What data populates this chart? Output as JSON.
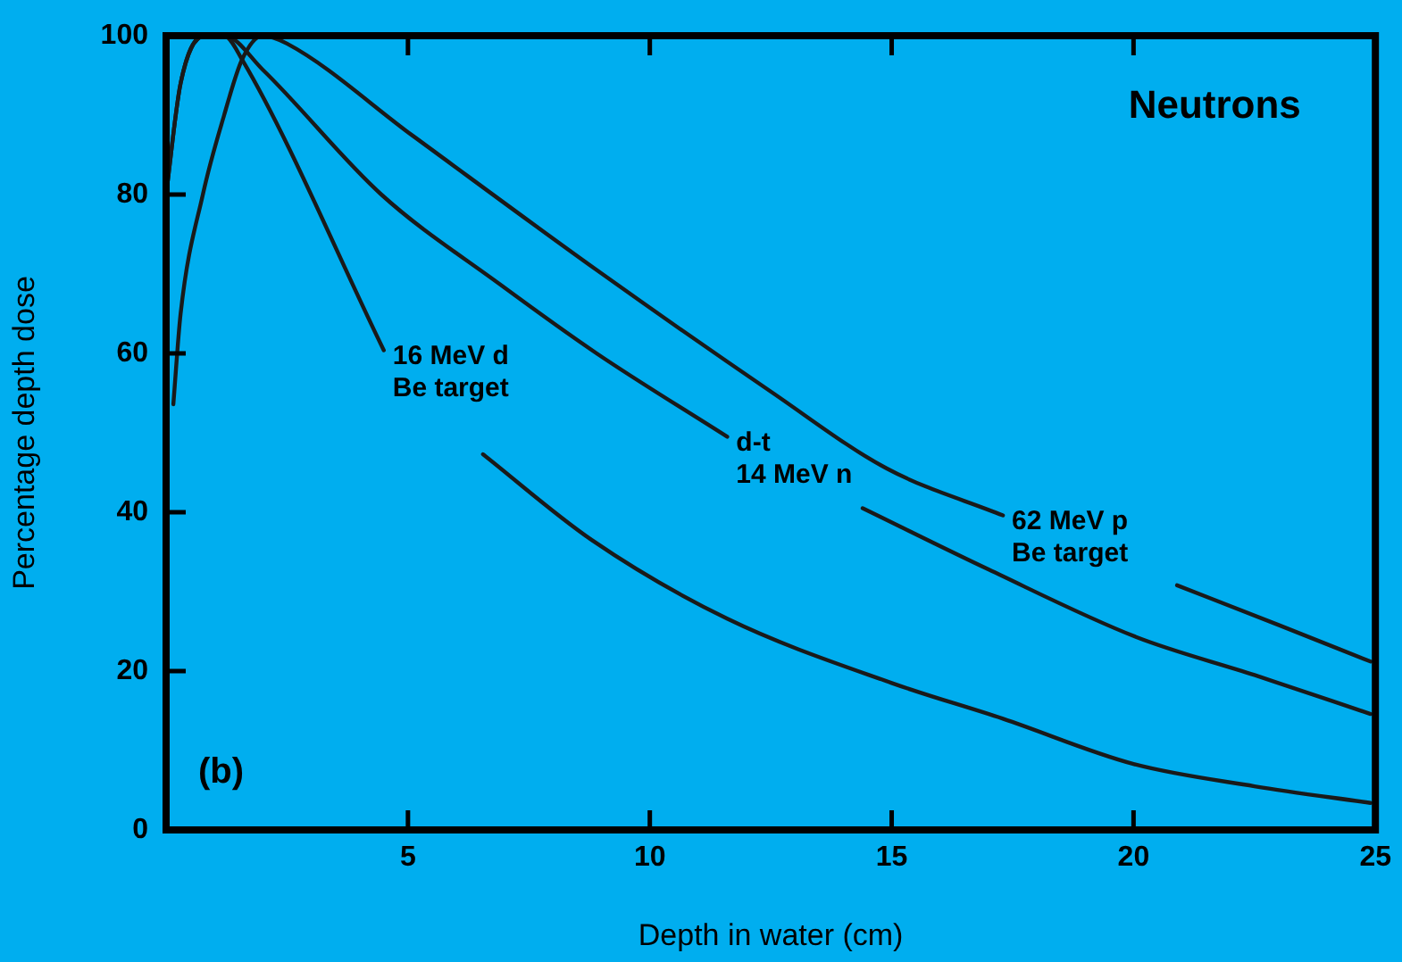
{
  "chart_data": {
    "type": "line",
    "title": "Neutrons",
    "xlabel": "Depth in water (cm)",
    "ylabel": "Percentage depth dose",
    "annotations": [
      "(b)"
    ],
    "xlim": [
      0,
      25
    ],
    "xticks": [
      5,
      10,
      15,
      20,
      25
    ],
    "ylim": [
      0,
      100
    ],
    "yticks": [
      0,
      20,
      40,
      60,
      80,
      100
    ],
    "grid": false,
    "legend": false,
    "marker": "none",
    "line_style": "solid",
    "series": [
      {
        "name": "16 MeV d\nBe target",
        "color": "#1a1a1a",
        "x": [
          0,
          0.3,
          0.8,
          1.2,
          1.57,
          4.5,
          5.5,
          6.55,
          8.8,
          11.6,
          15,
          17.3,
          20,
          22.5,
          24.9
        ],
        "values": [
          80,
          94,
          100,
          100,
          97,
          60.4,
          null,
          47.3,
          36.5,
          26.6,
          18.5,
          14,
          8.3,
          5.5,
          3.4
        ]
      },
      {
        "name": "d-t\n14 MeV n",
        "color": "#1a1a1a",
        "x": [
          0,
          0.3,
          0.8,
          1.2,
          2,
          4.45,
          6.9,
          8.9,
          11.6,
          13,
          14.4,
          17,
          20.05,
          22.5,
          24.9
        ],
        "values": [
          80,
          94,
          100,
          100,
          95.7,
          80,
          68.7,
          60,
          49.5,
          null,
          40.5,
          32.8,
          24.3,
          19.5,
          14.6
        ]
      },
      {
        "name": "62 MeV p\nBe target",
        "color": "#1a1a1a",
        "x": [
          0.15,
          0.3,
          0.76,
          1.2,
          1.57,
          2,
          2.5,
          5.1,
          8.9,
          12.5,
          14.9,
          17.3,
          19.1,
          20.9,
          23,
          24.9
        ],
        "values": [
          53.6,
          65,
          80,
          90,
          97,
          100,
          99,
          87.4,
          70.5,
          55.2,
          45.5,
          39.6,
          null,
          30.8,
          25.8,
          21.2
        ]
      }
    ]
  }
}
